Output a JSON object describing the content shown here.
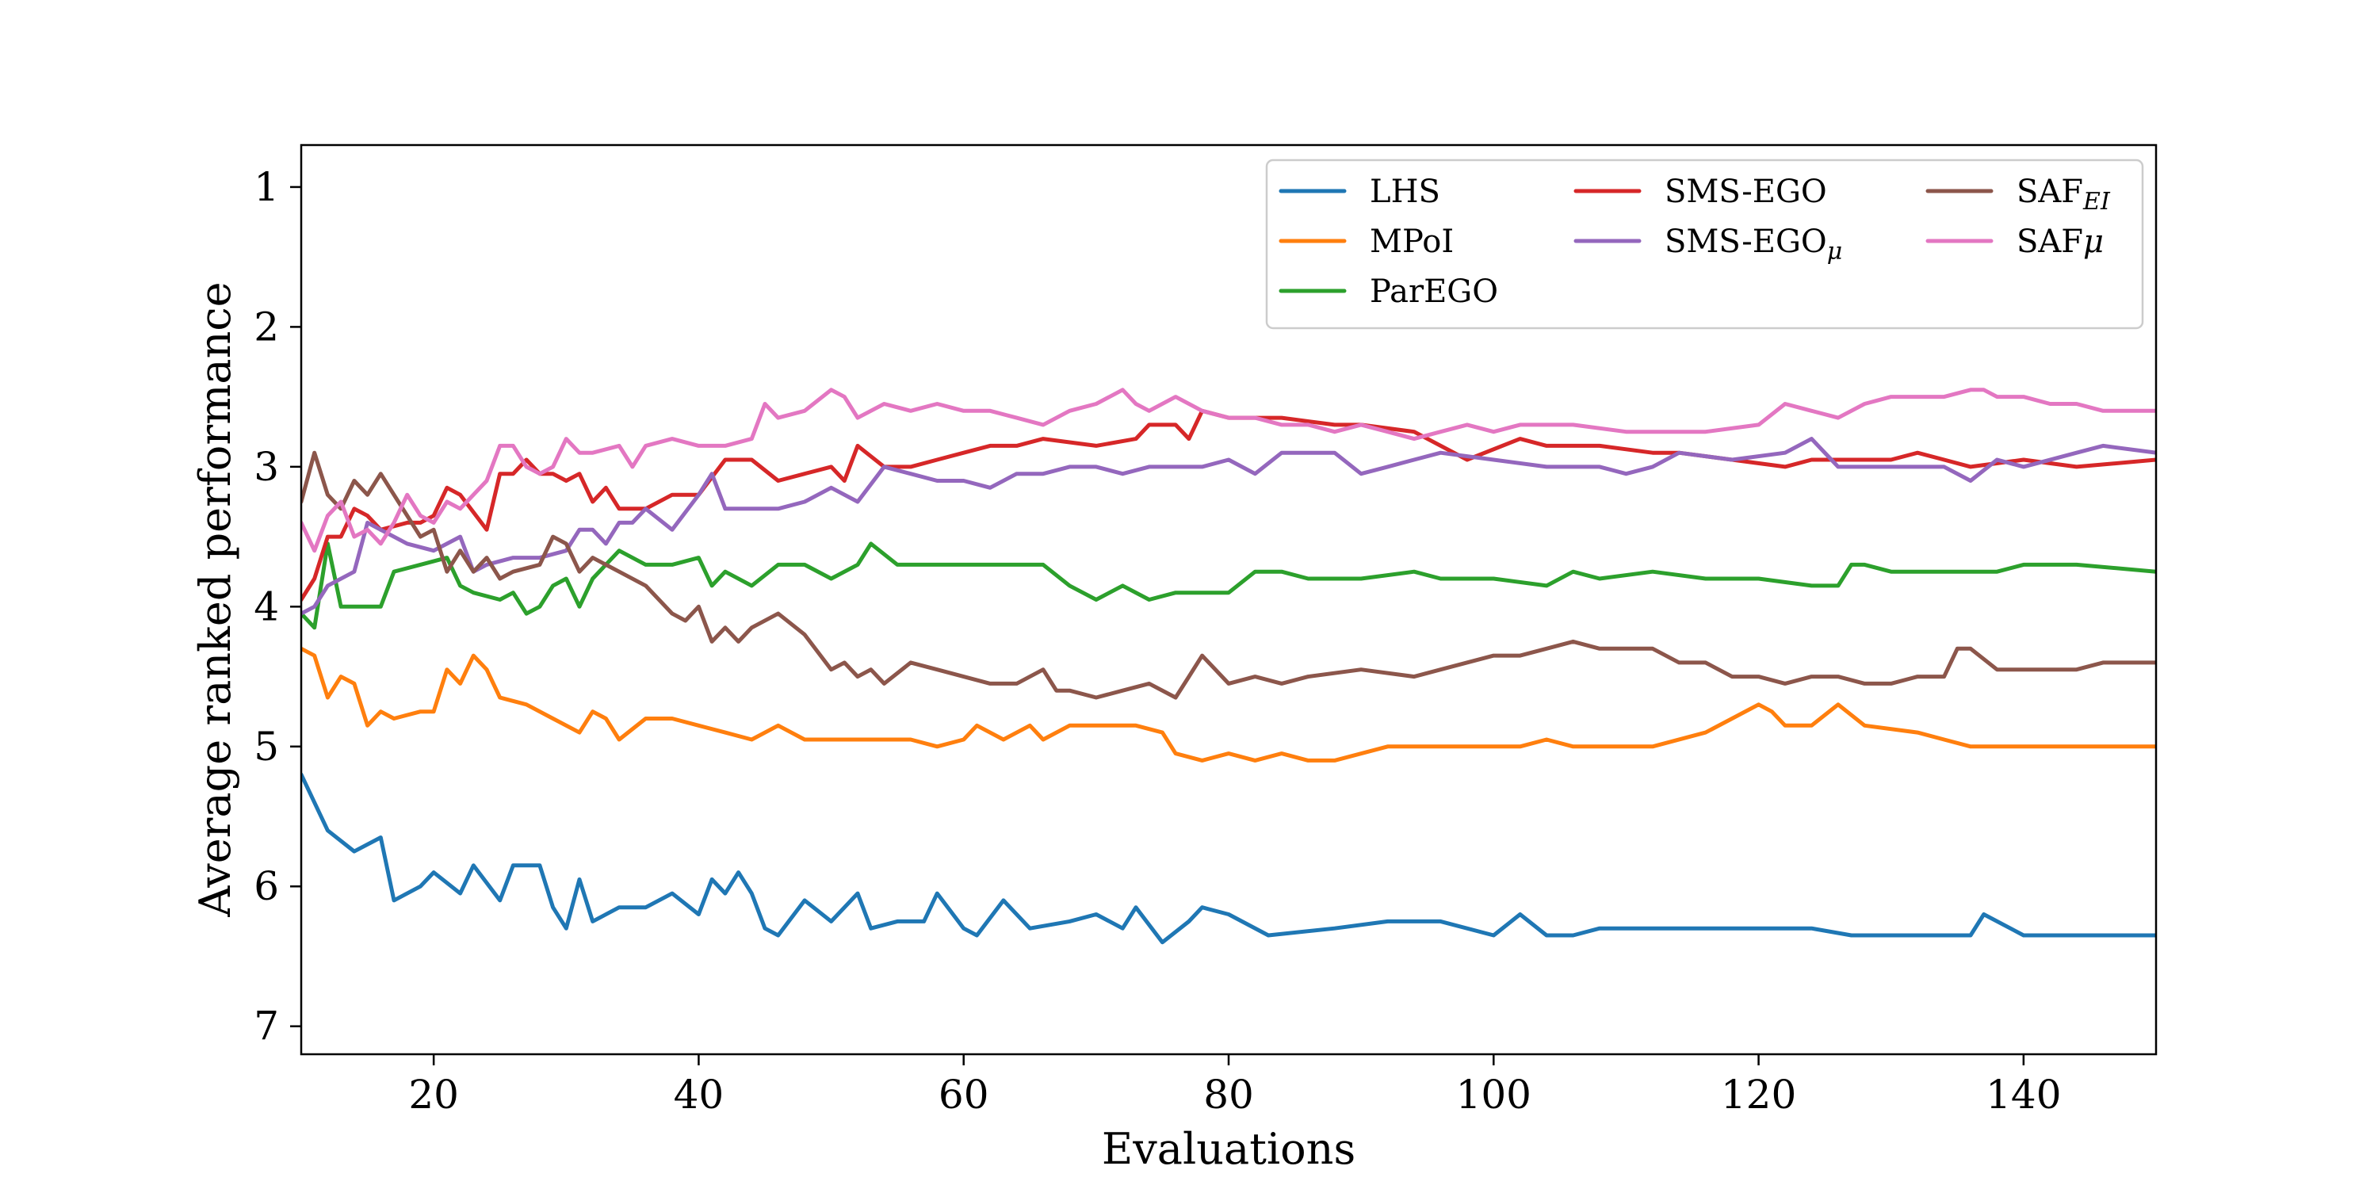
{
  "chart_data": {
    "type": "line",
    "xlabel": "Evaluations",
    "ylabel": "Average ranked performance",
    "xlim": [
      10,
      150
    ],
    "ylim": [
      7.2,
      0.7
    ],
    "y_inverted": true,
    "xticks": [
      20,
      40,
      60,
      80,
      100,
      120,
      140
    ],
    "yticks": [
      1,
      2,
      3,
      4,
      5,
      6,
      7
    ],
    "grid": false,
    "legend_position": "top-right",
    "series": [
      {
        "name": "LHS",
        "sub": "",
        "color": "#1f77b4",
        "x": [
          10,
          12,
          14,
          16,
          17,
          19,
          20,
          22,
          23,
          25,
          26,
          28,
          29,
          30,
          31,
          32,
          34,
          36,
          38,
          40,
          41,
          42,
          43,
          44,
          45,
          46,
          48,
          50,
          52,
          53,
          55,
          57,
          58,
          60,
          61,
          63,
          65,
          68,
          70,
          72,
          73,
          75,
          77,
          78,
          80,
          83,
          88,
          92,
          96,
          100,
          102,
          104,
          106,
          108,
          112,
          116,
          120,
          124,
          127,
          130,
          133,
          136,
          137,
          140,
          143,
          145,
          150
        ],
        "y": [
          5.2,
          5.6,
          5.75,
          5.65,
          6.1,
          6.0,
          5.9,
          6.05,
          5.85,
          6.1,
          5.85,
          5.85,
          6.15,
          6.3,
          5.95,
          6.25,
          6.15,
          6.15,
          6.05,
          6.2,
          5.95,
          6.05,
          5.9,
          6.05,
          6.3,
          6.35,
          6.1,
          6.25,
          6.05,
          6.3,
          6.25,
          6.25,
          6.05,
          6.3,
          6.35,
          6.1,
          6.3,
          6.25,
          6.2,
          6.3,
          6.15,
          6.4,
          6.25,
          6.15,
          6.2,
          6.35,
          6.3,
          6.25,
          6.25,
          6.35,
          6.2,
          6.35,
          6.35,
          6.3,
          6.3,
          6.3,
          6.3,
          6.3,
          6.35,
          6.35,
          6.35,
          6.35,
          6.2,
          6.35,
          6.35,
          6.35,
          6.35
        ]
      },
      {
        "name": "MPoI",
        "sub": "",
        "color": "#ff7f0e",
        "x": [
          10,
          11,
          12,
          13,
          14,
          15,
          16,
          17,
          19,
          20,
          21,
          22,
          23,
          24,
          25,
          27,
          29,
          31,
          32,
          33,
          34,
          36,
          38,
          40,
          42,
          44,
          46,
          48,
          50,
          52,
          54,
          56,
          58,
          60,
          61,
          63,
          65,
          66,
          68,
          70,
          73,
          75,
          76,
          78,
          80,
          82,
          84,
          86,
          88,
          92,
          96,
          100,
          102,
          104,
          106,
          110,
          112,
          116,
          118,
          120,
          121,
          122,
          124,
          126,
          128,
          132,
          134,
          136,
          138,
          142,
          146,
          150
        ],
        "y": [
          4.3,
          4.35,
          4.65,
          4.5,
          4.55,
          4.85,
          4.75,
          4.8,
          4.75,
          4.75,
          4.45,
          4.55,
          4.35,
          4.45,
          4.65,
          4.7,
          4.8,
          4.9,
          4.75,
          4.8,
          4.95,
          4.8,
          4.8,
          4.85,
          4.9,
          4.95,
          4.85,
          4.95,
          4.95,
          4.95,
          4.95,
          4.95,
          5.0,
          4.95,
          4.85,
          4.95,
          4.85,
          4.95,
          4.85,
          4.85,
          4.85,
          4.9,
          5.05,
          5.1,
          5.05,
          5.1,
          5.05,
          5.1,
          5.1,
          5.0,
          5.0,
          5.0,
          5.0,
          4.95,
          5.0,
          5.0,
          5.0,
          4.9,
          4.8,
          4.7,
          4.75,
          4.85,
          4.85,
          4.7,
          4.85,
          4.9,
          4.95,
          5.0,
          5.0,
          5.0,
          5.0,
          5.0
        ]
      },
      {
        "name": "ParEGO",
        "sub": "",
        "color": "#2ca02c",
        "x": [
          10,
          11,
          12,
          13,
          16,
          17,
          19,
          21,
          22,
          23,
          25,
          26,
          27,
          28,
          29,
          30,
          31,
          32,
          34,
          36,
          38,
          40,
          41,
          42,
          44,
          46,
          48,
          50,
          52,
          53,
          55,
          58,
          60,
          63,
          66,
          68,
          69,
          70,
          72,
          74,
          76,
          78,
          80,
          82,
          84,
          86,
          90,
          94,
          96,
          100,
          104,
          106,
          108,
          112,
          116,
          120,
          124,
          126,
          127,
          128,
          130,
          134,
          136,
          138,
          140,
          144,
          150
        ],
        "y": [
          4.05,
          4.15,
          3.55,
          4.0,
          4.0,
          3.75,
          3.7,
          3.65,
          3.85,
          3.9,
          3.95,
          3.9,
          4.05,
          4.0,
          3.85,
          3.8,
          4.0,
          3.8,
          3.6,
          3.7,
          3.7,
          3.65,
          3.85,
          3.75,
          3.85,
          3.7,
          3.7,
          3.8,
          3.7,
          3.55,
          3.7,
          3.7,
          3.7,
          3.7,
          3.7,
          3.85,
          3.9,
          3.95,
          3.85,
          3.95,
          3.9,
          3.9,
          3.9,
          3.75,
          3.75,
          3.8,
          3.8,
          3.75,
          3.8,
          3.8,
          3.85,
          3.75,
          3.8,
          3.75,
          3.8,
          3.8,
          3.85,
          3.85,
          3.7,
          3.7,
          3.75,
          3.75,
          3.75,
          3.75,
          3.7,
          3.7,
          3.75
        ]
      },
      {
        "name": "SMS-EGO",
        "sub": "",
        "color": "#d62728",
        "x": [
          10,
          11,
          12,
          13,
          14,
          15,
          16,
          18,
          19,
          20,
          21,
          22,
          24,
          25,
          26,
          27,
          28,
          29,
          30,
          31,
          32,
          33,
          34,
          36,
          38,
          40,
          42,
          44,
          46,
          48,
          50,
          51,
          52,
          54,
          56,
          58,
          60,
          62,
          64,
          66,
          70,
          73,
          74,
          76,
          77,
          78,
          80,
          84,
          88,
          90,
          94,
          98,
          102,
          104,
          108,
          112,
          114,
          118,
          122,
          124,
          126,
          130,
          132,
          134,
          136,
          140,
          144,
          150
        ],
        "y": [
          3.95,
          3.8,
          3.5,
          3.5,
          3.3,
          3.35,
          3.45,
          3.4,
          3.4,
          3.35,
          3.15,
          3.2,
          3.45,
          3.05,
          3.05,
          2.95,
          3.05,
          3.05,
          3.1,
          3.05,
          3.25,
          3.15,
          3.3,
          3.3,
          3.2,
          3.2,
          2.95,
          2.95,
          3.1,
          3.05,
          3.0,
          3.1,
          2.85,
          3.0,
          3.0,
          2.95,
          2.9,
          2.85,
          2.85,
          2.8,
          2.85,
          2.8,
          2.7,
          2.7,
          2.8,
          2.6,
          2.65,
          2.65,
          2.7,
          2.7,
          2.75,
          2.95,
          2.8,
          2.85,
          2.85,
          2.9,
          2.9,
          2.95,
          3.0,
          2.95,
          2.95,
          2.95,
          2.9,
          2.95,
          3.0,
          2.95,
          3.0,
          2.95
        ]
      },
      {
        "name": "SMS-EGO",
        "sub": "μ",
        "color": "#9467bd",
        "x": [
          10,
          11,
          12,
          14,
          15,
          16,
          18,
          20,
          22,
          23,
          24,
          26,
          28,
          30,
          31,
          32,
          33,
          34,
          35,
          36,
          38,
          40,
          41,
          42,
          44,
          46,
          48,
          50,
          52,
          54,
          56,
          58,
          60,
          62,
          64,
          66,
          68,
          70,
          72,
          74,
          76,
          78,
          80,
          82,
          84,
          86,
          88,
          90,
          92,
          94,
          96,
          100,
          104,
          108,
          110,
          112,
          114,
          118,
          122,
          124,
          126,
          128,
          130,
          134,
          136,
          138,
          140,
          144,
          146,
          150
        ],
        "y": [
          4.05,
          4.0,
          3.85,
          3.75,
          3.4,
          3.45,
          3.55,
          3.6,
          3.5,
          3.75,
          3.7,
          3.65,
          3.65,
          3.6,
          3.45,
          3.45,
          3.55,
          3.4,
          3.4,
          3.3,
          3.45,
          3.2,
          3.05,
          3.3,
          3.3,
          3.3,
          3.25,
          3.15,
          3.25,
          3.0,
          3.05,
          3.1,
          3.1,
          3.15,
          3.05,
          3.05,
          3.0,
          3.0,
          3.05,
          3.0,
          3.0,
          3.0,
          2.95,
          3.05,
          2.9,
          2.9,
          2.9,
          3.05,
          3.0,
          2.95,
          2.9,
          2.95,
          3.0,
          3.0,
          3.05,
          3.0,
          2.9,
          2.95,
          2.9,
          2.8,
          3.0,
          3.0,
          3.0,
          3.0,
          3.1,
          2.95,
          3.0,
          2.9,
          2.85,
          2.9
        ]
      },
      {
        "name": "SAF",
        "sub": "EI",
        "color": "#8c564b",
        "x": [
          10,
          11,
          12,
          13,
          14,
          15,
          16,
          17,
          18,
          19,
          20,
          21,
          22,
          23,
          24,
          25,
          26,
          28,
          29,
          30,
          31,
          32,
          34,
          36,
          38,
          39,
          40,
          41,
          42,
          43,
          44,
          46,
          48,
          50,
          51,
          52,
          53,
          54,
          56,
          58,
          60,
          62,
          64,
          66,
          67,
          68,
          70,
          72,
          74,
          76,
          77,
          78,
          80,
          82,
          84,
          86,
          90,
          94,
          96,
          100,
          102,
          104,
          106,
          108,
          110,
          112,
          114,
          116,
          118,
          120,
          122,
          124,
          126,
          128,
          130,
          132,
          134,
          135,
          136,
          138,
          140,
          142,
          144,
          146,
          150
        ],
        "y": [
          3.25,
          2.9,
          3.2,
          3.3,
          3.1,
          3.2,
          3.05,
          3.2,
          3.35,
          3.5,
          3.45,
          3.75,
          3.6,
          3.75,
          3.65,
          3.8,
          3.75,
          3.7,
          3.5,
          3.55,
          3.75,
          3.65,
          3.75,
          3.85,
          4.05,
          4.1,
          4.0,
          4.25,
          4.15,
          4.25,
          4.15,
          4.05,
          4.2,
          4.45,
          4.4,
          4.5,
          4.45,
          4.55,
          4.4,
          4.45,
          4.5,
          4.55,
          4.55,
          4.45,
          4.6,
          4.6,
          4.65,
          4.6,
          4.55,
          4.65,
          4.5,
          4.35,
          4.55,
          4.5,
          4.55,
          4.5,
          4.45,
          4.5,
          4.45,
          4.35,
          4.35,
          4.3,
          4.25,
          4.3,
          4.3,
          4.3,
          4.4,
          4.4,
          4.5,
          4.5,
          4.55,
          4.5,
          4.5,
          4.55,
          4.55,
          4.5,
          4.5,
          4.3,
          4.3,
          4.45,
          4.45,
          4.45,
          4.45,
          4.4,
          4.4
        ]
      },
      {
        "name": "SAF",
        "sub": "μ",
        "color": "#e377c2",
        "x": [
          10,
          11,
          12,
          13,
          14,
          15,
          16,
          17,
          18,
          19,
          20,
          21,
          22,
          24,
          25,
          26,
          27,
          28,
          29,
          30,
          31,
          32,
          34,
          35,
          36,
          38,
          40,
          42,
          44,
          45,
          46,
          48,
          50,
          51,
          52,
          54,
          56,
          58,
          60,
          62,
          64,
          66,
          68,
          70,
          72,
          73,
          74,
          76,
          78,
          80,
          82,
          84,
          86,
          88,
          90,
          92,
          94,
          96,
          98,
          100,
          102,
          106,
          110,
          112,
          116,
          120,
          122,
          124,
          126,
          128,
          130,
          132,
          134,
          136,
          137,
          138,
          140,
          142,
          144,
          146,
          150
        ],
        "y": [
          3.4,
          3.6,
          3.35,
          3.25,
          3.5,
          3.45,
          3.55,
          3.4,
          3.2,
          3.35,
          3.4,
          3.25,
          3.3,
          3.1,
          2.85,
          2.85,
          3.0,
          3.05,
          3.0,
          2.8,
          2.9,
          2.9,
          2.85,
          3.0,
          2.85,
          2.8,
          2.85,
          2.85,
          2.8,
          2.55,
          2.65,
          2.6,
          2.45,
          2.5,
          2.65,
          2.55,
          2.6,
          2.55,
          2.6,
          2.6,
          2.65,
          2.7,
          2.6,
          2.55,
          2.45,
          2.55,
          2.6,
          2.5,
          2.6,
          2.65,
          2.65,
          2.7,
          2.7,
          2.75,
          2.7,
          2.75,
          2.8,
          2.75,
          2.7,
          2.75,
          2.7,
          2.7,
          2.75,
          2.75,
          2.75,
          2.7,
          2.55,
          2.6,
          2.65,
          2.55,
          2.5,
          2.5,
          2.5,
          2.45,
          2.45,
          2.5,
          2.5,
          2.55,
          2.55,
          2.6,
          2.6
        ]
      }
    ]
  }
}
